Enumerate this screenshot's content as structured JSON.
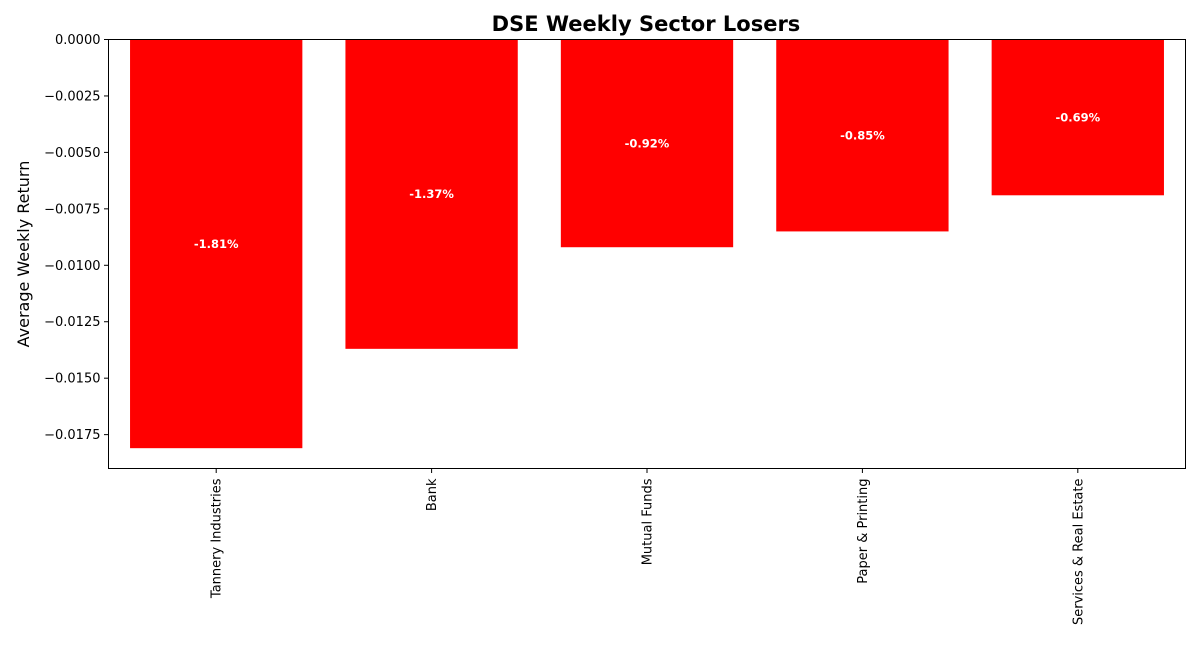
{
  "chart_data": {
    "type": "bar",
    "title": "DSE Weekly Sector Losers",
    "xlabel": "",
    "ylabel": "Average Weekly Return",
    "categories": [
      "Tannery Industries",
      "Bank",
      "Mutual Funds",
      "Paper & Printing",
      "Services & Real Estate"
    ],
    "values": [
      -0.0181,
      -0.0137,
      -0.0092,
      -0.0085,
      -0.0069
    ],
    "data_labels": [
      "-1.81%",
      "-1.37%",
      "-0.92%",
      "-0.85%",
      "-0.69%"
    ],
    "ylim": [
      -0.019,
      0.0
    ],
    "yticks": [
      0.0,
      -0.0025,
      -0.005,
      -0.0075,
      -0.01,
      -0.0125,
      -0.015,
      -0.0175
    ],
    "ytick_labels": [
      "0.0000",
      "−0.0025",
      "−0.0050",
      "−0.0075",
      "−0.0100",
      "−0.0125",
      "−0.0150",
      "−0.0175"
    ],
    "bar_color": "#ff0000",
    "grid": false,
    "legend": "none"
  }
}
